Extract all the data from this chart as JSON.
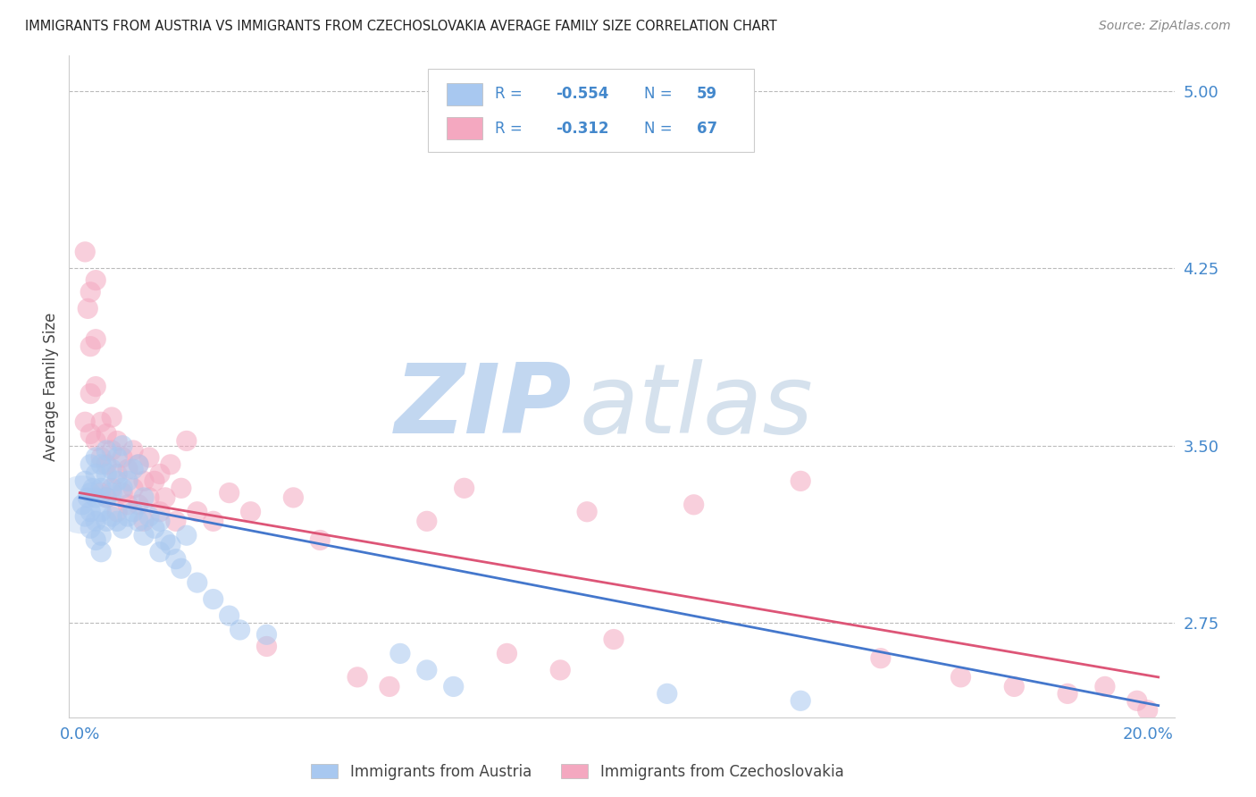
{
  "title": "IMMIGRANTS FROM AUSTRIA VS IMMIGRANTS FROM CZECHOSLOVAKIA AVERAGE FAMILY SIZE CORRELATION CHART",
  "source": "Source: ZipAtlas.com",
  "ylabel": "Average Family Size",
  "ylim": [
    2.35,
    5.15
  ],
  "xlim": [
    -0.002,
    0.205
  ],
  "austria_R": -0.554,
  "austria_N": 59,
  "czech_R": -0.312,
  "czech_N": 67,
  "austria_color": "#A8C8F0",
  "czech_color": "#F4A8C0",
  "austria_line_color": "#4477CC",
  "czech_line_color": "#DD5577",
  "background_color": "#FFFFFF",
  "grid_color": "#BBBBBB",
  "title_fontsize": 10.5,
  "axis_label_color": "#4488CC",
  "legend_text_color": "#4488CC",
  "austria_x": [
    0.0005,
    0.001,
    0.001,
    0.0015,
    0.002,
    0.002,
    0.002,
    0.002,
    0.0025,
    0.003,
    0.003,
    0.003,
    0.003,
    0.003,
    0.004,
    0.004,
    0.004,
    0.004,
    0.004,
    0.005,
    0.005,
    0.005,
    0.005,
    0.006,
    0.006,
    0.006,
    0.007,
    0.007,
    0.007,
    0.008,
    0.008,
    0.008,
    0.009,
    0.009,
    0.01,
    0.01,
    0.011,
    0.011,
    0.012,
    0.012,
    0.013,
    0.014,
    0.015,
    0.015,
    0.016,
    0.017,
    0.018,
    0.019,
    0.02,
    0.022,
    0.025,
    0.028,
    0.03,
    0.035,
    0.06,
    0.065,
    0.07,
    0.11,
    0.135
  ],
  "austria_y": [
    3.25,
    3.35,
    3.2,
    3.28,
    3.42,
    3.3,
    3.22,
    3.15,
    3.32,
    3.45,
    3.38,
    3.28,
    3.18,
    3.1,
    3.42,
    3.32,
    3.22,
    3.12,
    3.05,
    3.48,
    3.38,
    3.28,
    3.18,
    3.4,
    3.3,
    3.2,
    3.45,
    3.35,
    3.18,
    3.5,
    3.32,
    3.15,
    3.35,
    3.2,
    3.4,
    3.22,
    3.42,
    3.18,
    3.28,
    3.12,
    3.2,
    3.15,
    3.18,
    3.05,
    3.1,
    3.08,
    3.02,
    2.98,
    3.12,
    2.92,
    2.85,
    2.78,
    2.72,
    2.7,
    2.62,
    2.55,
    2.48,
    2.45,
    2.42
  ],
  "czech_x": [
    0.001,
    0.001,
    0.0015,
    0.002,
    0.002,
    0.002,
    0.002,
    0.003,
    0.003,
    0.003,
    0.003,
    0.004,
    0.004,
    0.004,
    0.005,
    0.005,
    0.005,
    0.006,
    0.006,
    0.006,
    0.007,
    0.007,
    0.007,
    0.008,
    0.008,
    0.009,
    0.009,
    0.01,
    0.01,
    0.011,
    0.011,
    0.012,
    0.012,
    0.013,
    0.013,
    0.014,
    0.015,
    0.015,
    0.016,
    0.017,
    0.018,
    0.019,
    0.02,
    0.022,
    0.025,
    0.028,
    0.032,
    0.035,
    0.04,
    0.045,
    0.052,
    0.058,
    0.065,
    0.072,
    0.08,
    0.09,
    0.095,
    0.1,
    0.115,
    0.135,
    0.15,
    0.165,
    0.175,
    0.185,
    0.192,
    0.198,
    0.2
  ],
  "czech_y": [
    4.32,
    3.6,
    4.08,
    4.15,
    3.92,
    3.72,
    3.55,
    4.2,
    3.95,
    3.75,
    3.52,
    3.6,
    3.45,
    3.3,
    3.55,
    3.42,
    3.28,
    3.62,
    3.48,
    3.32,
    3.52,
    3.38,
    3.22,
    3.45,
    3.3,
    3.4,
    3.25,
    3.48,
    3.32,
    3.42,
    3.25,
    3.35,
    3.18,
    3.28,
    3.45,
    3.35,
    3.22,
    3.38,
    3.28,
    3.42,
    3.18,
    3.32,
    3.52,
    3.22,
    3.18,
    3.3,
    3.22,
    2.65,
    3.28,
    3.1,
    2.52,
    2.48,
    3.18,
    3.32,
    2.62,
    2.55,
    3.22,
    2.68,
    3.25,
    3.35,
    2.6,
    2.52,
    2.48,
    2.45,
    2.48,
    2.42,
    2.38
  ],
  "austria_line_x0": 0.0,
  "austria_line_y0": 3.28,
  "austria_line_x1": 0.202,
  "austria_line_y1": 2.4,
  "czech_line_x0": 0.0,
  "czech_line_y0": 3.3,
  "czech_line_x1": 0.202,
  "czech_line_y1": 2.52,
  "ytick_positions": [
    2.75,
    3.5,
    4.25,
    5.0
  ],
  "ytick_labels": [
    "2.75",
    "3.50",
    "4.25",
    "5.00"
  ],
  "watermark_zip": "ZIP",
  "watermark_atlas": "atlas"
}
